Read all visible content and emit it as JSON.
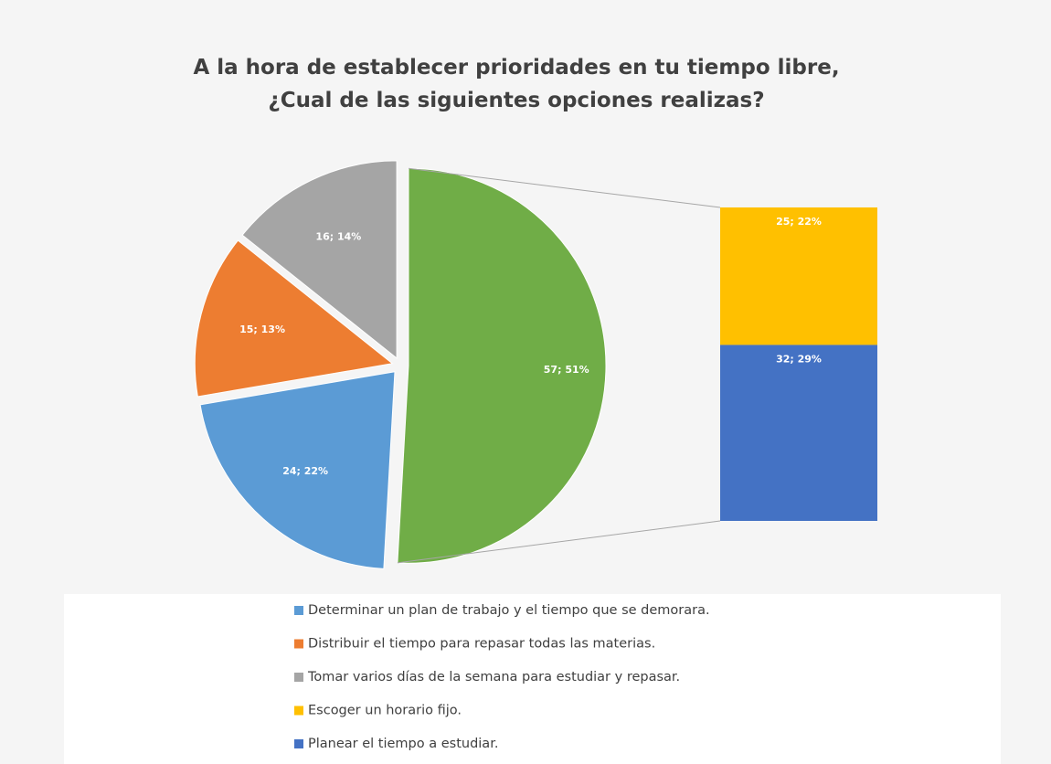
{
  "chart_data": {
    "type": "bar-of-pie",
    "title": "A la hora de establecer prioridades en tu tiempo libre,\n¿Cual de las siguientes opciones realizas?",
    "slices": [
      {
        "name": "Determinar un plan de trabajo y el tiempo que se demorara.",
        "color": "#5b9bd5",
        "value": 24,
        "value_label": "24; 22%"
      },
      {
        "name": "Distribuir el tiempo para repasar todas las materias.",
        "color": "#ed7d31",
        "value": 15,
        "value_label": "15; 13%"
      },
      {
        "name": "Tomar varios días de la semana para estudiar y repasar.",
        "color": "#a5a5a5",
        "value": 16,
        "value_label": "16; 14%"
      }
    ],
    "other": {
      "color": "#70ad47",
      "value": 57,
      "value_label": "57; 51%"
    },
    "bar": [
      {
        "name": "Escoger un horario fijo.",
        "color": "#ffc000",
        "value": 25,
        "value_label": "25; 22%"
      },
      {
        "name": "Planear el tiempo a estudiar.",
        "color": "#4472c4",
        "value": 32,
        "value_label": "32; 29%"
      }
    ]
  }
}
